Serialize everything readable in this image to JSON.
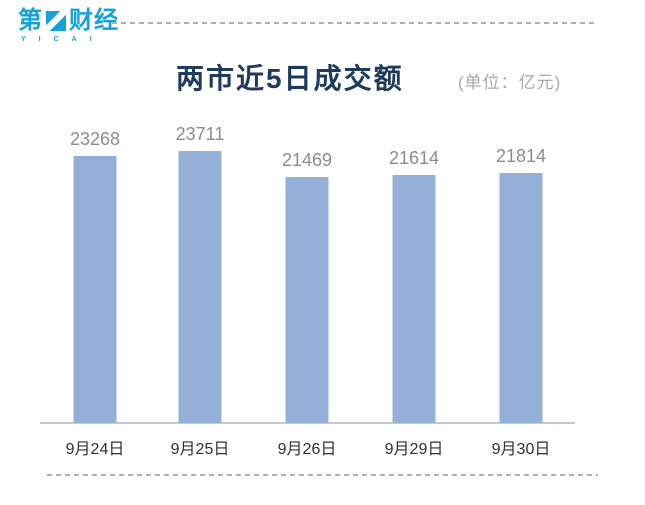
{
  "brand": {
    "logo_left": "第",
    "logo_right": "财经",
    "logo_sub": "YICAI",
    "logo_color": "#18A0DC"
  },
  "header": {
    "title": "两市近5日成交额",
    "unit_label": "(单位：亿元)",
    "title_color": "#1E3A5F"
  },
  "chart_data": {
    "type": "bar",
    "title": "两市近5日成交额",
    "unit": "亿元",
    "categories": [
      "9月24日",
      "9月25日",
      "9月26日",
      "9月29日",
      "9月30日"
    ],
    "values": [
      23268,
      23711,
      21469,
      21614,
      21814
    ],
    "xlabel": "",
    "ylabel": "",
    "ylim": [
      0,
      24000
    ],
    "grid": false,
    "legend": false,
    "value_labels": true,
    "bar_color": "#94B0D8",
    "value_label_color": "#8C8C8C",
    "tick_label_color": "#303030",
    "axis_line_color": "#C9C9C9"
  }
}
